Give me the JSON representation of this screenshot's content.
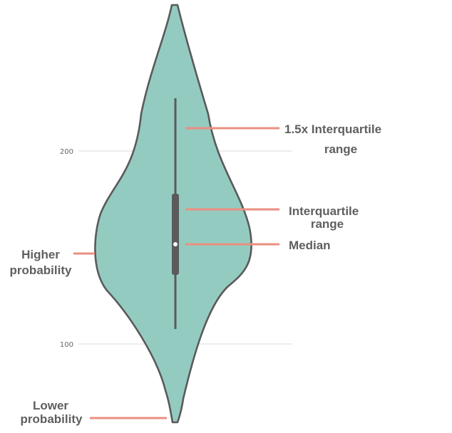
{
  "colors": {
    "violin_fill": "#94cbc1",
    "violin_stroke": "#5a5a5a",
    "pointer_line": "#ea8f80",
    "gridline": "#e2e2e2",
    "annotation_text": "#5f5f5f",
    "median_marker": "#ffffff"
  },
  "axis": {
    "ticks": [
      {
        "label": "200",
        "value": 200
      },
      {
        "label": "100",
        "value": 100
      }
    ]
  },
  "annotations": {
    "whisker_line1": "1.5x Interquartile",
    "whisker_line2": "range",
    "iqr_line1": "Interquartile",
    "iqr_line2": "range",
    "median": "Median",
    "higher_line1": "Higher",
    "higher_line2": "probability",
    "lower_line1": "Lower",
    "lower_line2": "probability"
  }
}
